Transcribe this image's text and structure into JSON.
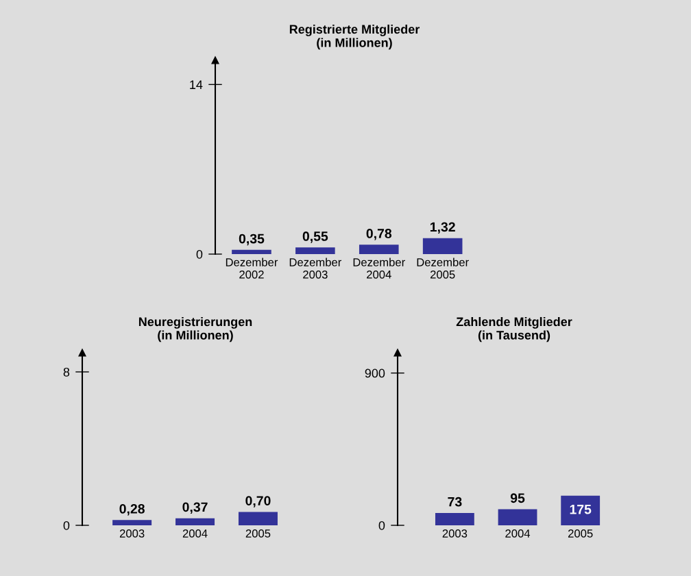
{
  "chart_data": [
    {
      "type": "bar",
      "title": "Registrierte Mitglieder\n(in Millionen)",
      "categories": [
        "Dezember\n2002",
        "Dezember\n2003",
        "Dezember\n2004",
        "Dezember\n2005"
      ],
      "values": [
        0.35,
        0.55,
        0.78,
        1.32
      ],
      "value_labels": [
        "0,35",
        "0,55",
        "0,78",
        "1,32"
      ],
      "color": "#333399",
      "ylim": [
        0,
        16
      ],
      "yticks": [
        0,
        14
      ]
    },
    {
      "type": "bar",
      "title": "Neuregistrierungen\n(in Millionen)",
      "categories": [
        "2003",
        "2004",
        "2005"
      ],
      "values": [
        0.28,
        0.37,
        0.7
      ],
      "value_labels": [
        "0,28",
        "0,37",
        "0,70"
      ],
      "color": "#333399",
      "ylim": [
        0,
        9
      ],
      "yticks": [
        0,
        8
      ]
    },
    {
      "type": "bar",
      "title": "Zahlende Mitglieder\n(in Tausend)",
      "categories": [
        "2003",
        "2004",
        "2005"
      ],
      "values": [
        73,
        95,
        175
      ],
      "value_labels": [
        "73",
        "95",
        "175"
      ],
      "color": "#333399",
      "ylim": [
        0,
        1020
      ],
      "yticks": [
        0,
        900
      ]
    }
  ]
}
